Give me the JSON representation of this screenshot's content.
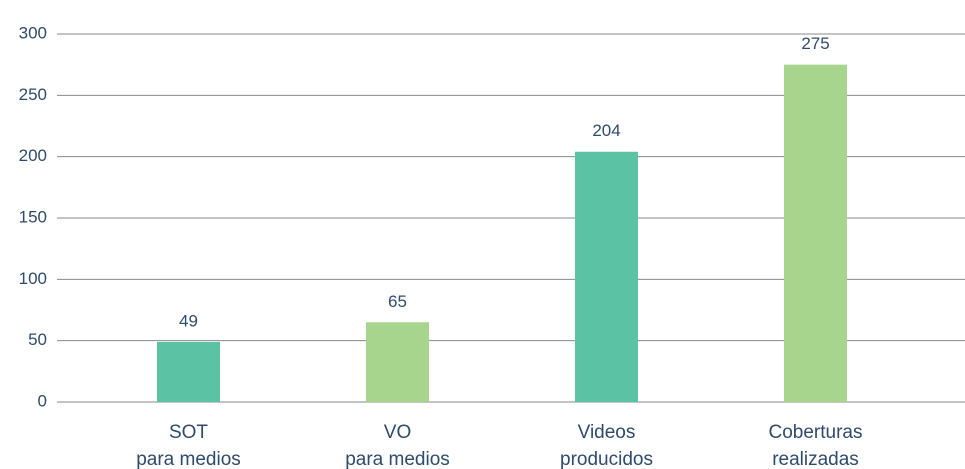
{
  "chart_data": {
    "type": "bar",
    "categories": [
      [
        "SOT",
        "para medios"
      ],
      [
        "VO",
        "para medios"
      ],
      [
        "Videos",
        "producidos"
      ],
      [
        "Coberturas",
        "realizadas"
      ]
    ],
    "values": [
      49,
      65,
      204,
      275
    ],
    "colors": [
      "#5bc2a4",
      "#a8d58d",
      "#5bc2a4",
      "#a8d58d"
    ],
    "ylim": [
      0,
      300
    ],
    "yticks": [
      0,
      50,
      100,
      150,
      200,
      250,
      300
    ],
    "grid": true
  }
}
